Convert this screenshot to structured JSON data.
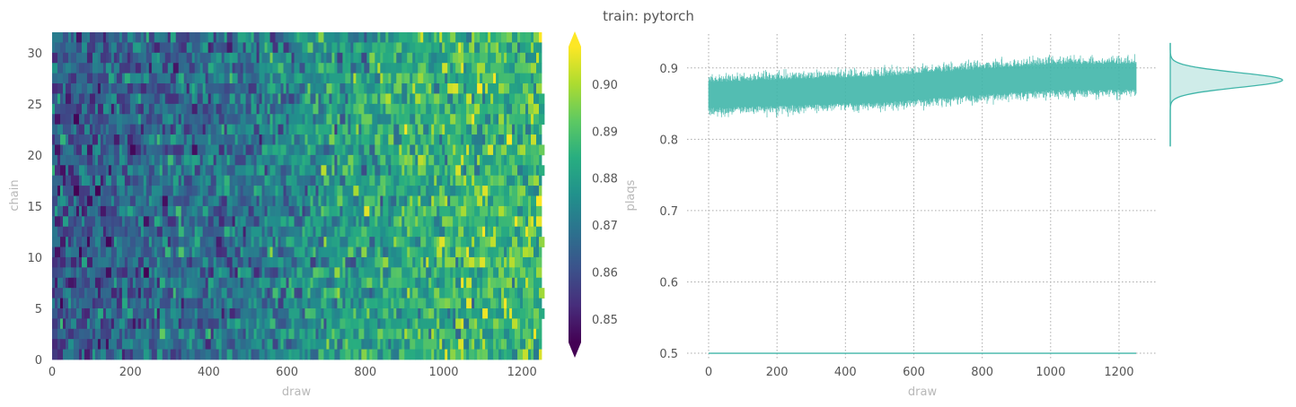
{
  "chart_data": [
    {
      "type": "heatmap",
      "title": "train: pytorch",
      "xlabel": "draw",
      "ylabel": "chain",
      "colorbar_label": "plaqs",
      "colormap": "viridis",
      "xlim": [
        0,
        1250
      ],
      "ylim": [
        0,
        32
      ],
      "xticks": [
        0,
        200,
        400,
        600,
        800,
        1000,
        1200
      ],
      "yticks": [
        0,
        5,
        10,
        15,
        20,
        25,
        30
      ],
      "color_range": [
        0.845,
        0.908
      ],
      "colorbar_ticks": [
        0.85,
        0.86,
        0.87,
        0.88,
        0.89,
        0.9
      ],
      "colorbar_extend": "both",
      "n_chains": 32,
      "n_draws": 1250,
      "trend": {
        "draw": [
          0,
          250,
          500,
          750,
          1000,
          1250
        ],
        "mean_plaq": [
          0.862,
          0.866,
          0.87,
          0.879,
          0.887,
          0.888
        ]
      }
    },
    {
      "type": "line",
      "xlabel": "draw",
      "ylabel": "",
      "xlim": [
        0,
        1250
      ],
      "ylim": [
        0.49,
        0.95
      ],
      "xticks": [
        0,
        200,
        400,
        600,
        800,
        1000,
        1200
      ],
      "yticks": [
        0.5,
        0.6,
        0.7,
        0.8,
        0.9
      ],
      "grid": true,
      "color": "#40b5a9",
      "series": [
        {
          "x": [
            0,
            250,
            500,
            750,
            1000,
            1250
          ],
          "y": [
            0.862,
            0.866,
            0.87,
            0.879,
            0.887,
            0.888
          ],
          "spread": 0.018
        },
        {
          "x": [
            0,
            1250
          ],
          "y": [
            0.5,
            0.5
          ]
        }
      ],
      "marginal_kde": {
        "peak": 0.883,
        "range": [
          0.79,
          0.935
        ]
      }
    }
  ]
}
